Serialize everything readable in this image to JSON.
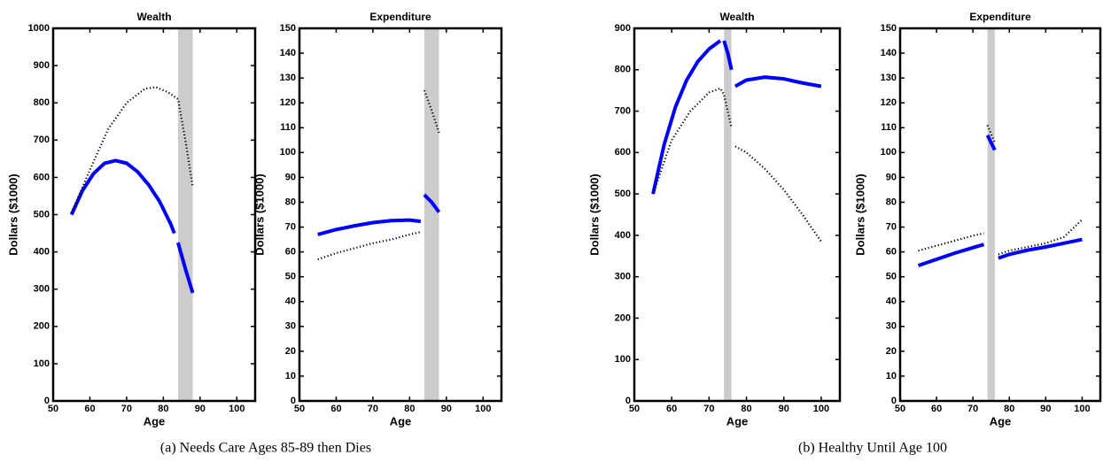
{
  "chart_data": [
    {
      "type": "line",
      "title": "Wealth",
      "xlabel": "Age",
      "ylabel": "Dollars ($1000)",
      "xlim": [
        50,
        105
      ],
      "xticks": [
        50,
        60,
        70,
        80,
        90,
        100
      ],
      "ylim": [
        0,
        1000
      ],
      "yticks": [
        0,
        100,
        200,
        300,
        400,
        500,
        600,
        700,
        800,
        900,
        1000
      ],
      "shade": [
        84,
        88
      ],
      "shade_color": "#cccccc",
      "grid": false,
      "series": [
        {
          "color": "#0000ff",
          "style": "solid",
          "x": [
            55,
            58,
            61,
            64,
            67,
            70,
            73,
            76,
            79,
            82,
            83,
            83.5,
            84,
            86,
            88
          ],
          "values": [
            500,
            565,
            610,
            638,
            645,
            638,
            615,
            580,
            535,
            475,
            450,
            null,
            425,
            355,
            290
          ]
        },
        {
          "color": "#000000",
          "style": "dotted",
          "x": [
            55,
            60,
            65,
            70,
            75,
            78,
            81,
            84,
            86,
            88
          ],
          "values": [
            505,
            620,
            730,
            800,
            838,
            842,
            830,
            810,
            700,
            575
          ]
        }
      ]
    },
    {
      "type": "line",
      "title": "Expenditure",
      "xlabel": "Age",
      "ylabel": "Dollars ($1000)",
      "xlim": [
        50,
        105
      ],
      "xticks": [
        50,
        60,
        70,
        80,
        90,
        100
      ],
      "ylim": [
        0,
        150
      ],
      "yticks": [
        0,
        10,
        20,
        30,
        40,
        50,
        60,
        70,
        80,
        90,
        100,
        110,
        120,
        130,
        140,
        150
      ],
      "shade": [
        84,
        88
      ],
      "shade_color": "#cccccc",
      "grid": false,
      "series": [
        {
          "color": "#0000ff",
          "style": "solid",
          "x": [
            55,
            60,
            65,
            70,
            75,
            80,
            83,
            83.5,
            84,
            86,
            88
          ],
          "values": [
            67,
            69,
            70.5,
            71.8,
            72.6,
            72.8,
            72.3,
            null,
            83,
            80,
            76
          ]
        },
        {
          "color": "#000000",
          "style": "dotted",
          "x": [
            55,
            60,
            65,
            70,
            75,
            80,
            83,
            83.5,
            84,
            86,
            88
          ],
          "values": [
            57,
            59.5,
            61.5,
            63.5,
            65,
            67,
            68,
            null,
            125,
            117,
            108
          ]
        }
      ]
    },
    {
      "type": "line",
      "title": "Wealth",
      "xlabel": "Age",
      "ylabel": "Dollars ($1000)",
      "xlim": [
        50,
        105
      ],
      "xticks": [
        50,
        60,
        70,
        80,
        90,
        100
      ],
      "ylim": [
        0,
        900
      ],
      "yticks": [
        0,
        100,
        200,
        300,
        400,
        500,
        600,
        700,
        800,
        900
      ],
      "shade": [
        74,
        76
      ],
      "shade_color": "#cccccc",
      "grid": false,
      "series": [
        {
          "color": "#0000ff",
          "style": "solid",
          "x": [
            55,
            58,
            61,
            64,
            67,
            70,
            73,
            73.5,
            74,
            75,
            76,
            76.5,
            77,
            80,
            85,
            90,
            95,
            100
          ],
          "values": [
            500,
            620,
            710,
            775,
            820,
            850,
            870,
            null,
            870,
            840,
            800,
            null,
            760,
            775,
            782,
            778,
            768,
            760
          ]
        },
        {
          "color": "#000000",
          "style": "dotted",
          "x": [
            55,
            60,
            65,
            70,
            73,
            74,
            75,
            76,
            76.5,
            77,
            80,
            85,
            90,
            95,
            100
          ],
          "values": [
            500,
            630,
            700,
            745,
            755,
            740,
            700,
            660,
            null,
            615,
            600,
            560,
            510,
            450,
            385
          ]
        }
      ]
    },
    {
      "type": "line",
      "title": "Expenditure",
      "xlabel": "Age",
      "ylabel": "Dollars ($1000)",
      "xlim": [
        50,
        105
      ],
      "xticks": [
        50,
        60,
        70,
        80,
        90,
        100
      ],
      "ylim": [
        0,
        150
      ],
      "yticks": [
        0,
        10,
        20,
        30,
        40,
        50,
        60,
        70,
        80,
        90,
        100,
        110,
        120,
        130,
        140,
        150
      ],
      "shade": [
        74,
        76
      ],
      "shade_color": "#cccccc",
      "grid": false,
      "series": [
        {
          "color": "#0000ff",
          "style": "solid",
          "x": [
            55,
            60,
            65,
            70,
            73,
            73.5,
            74,
            76,
            76.5,
            77,
            80,
            85,
            90,
            95,
            100
          ],
          "values": [
            54.5,
            57,
            59.5,
            61.7,
            63,
            null,
            107,
            101,
            null,
            57.5,
            59,
            60.7,
            62,
            63.5,
            65
          ]
        },
        {
          "color": "#000000",
          "style": "dotted",
          "x": [
            55,
            60,
            65,
            70,
            73,
            73.5,
            74,
            76,
            76.5,
            77,
            80,
            85,
            90,
            95,
            100
          ],
          "values": [
            60.5,
            62.5,
            64.5,
            66.5,
            67.5,
            null,
            111,
            104,
            null,
            59,
            60.5,
            62,
            63.5,
            66,
            73
          ]
        }
      ]
    }
  ],
  "captions": [
    "(a) Needs Care Ages 85-89 then Dies",
    "(b) Healthy Until Age 100"
  ]
}
